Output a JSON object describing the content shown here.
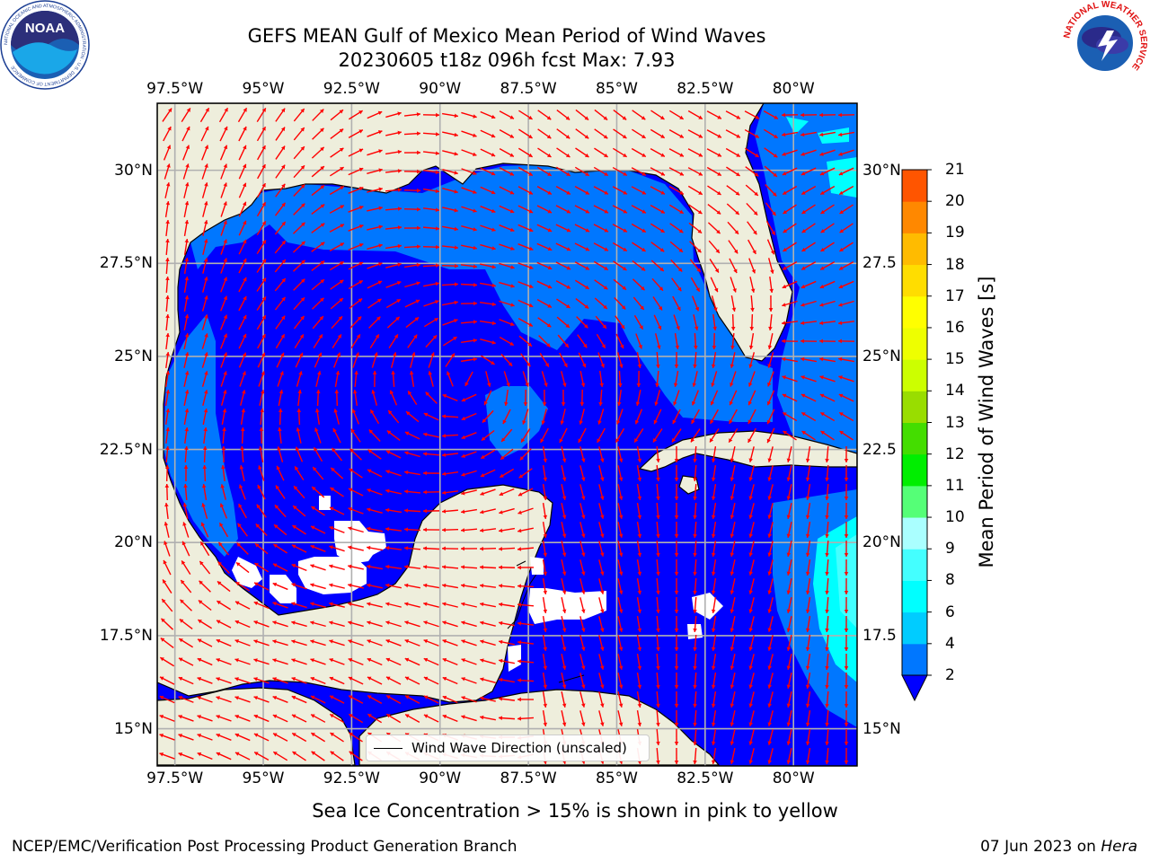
{
  "header": {
    "title_line1": "GEFS MEAN Gulf of Mexico Mean Period of Wind Waves",
    "title_line2": "20230605 t18z 096h fcst   Max: 7.93"
  },
  "logos": {
    "left": "NOAA",
    "left_ring_text": "NATIONAL OCEANIC AND ATMOSPHERIC ADMINISTRATION · U.S. DEPARTMENT OF COMMERCE",
    "right_ring_text": "NATIONAL WEATHER SERVICE"
  },
  "map": {
    "lon_labels": [
      "97.5°W",
      "95°W",
      "92.5°W",
      "90°W",
      "87.5°W",
      "85°W",
      "82.5°W",
      "80°W"
    ],
    "lat_labels_left": [
      "30°N",
      "27.5°N",
      "25°N",
      "22.5°N",
      "20°N",
      "17.5°N",
      "15°N"
    ],
    "lat_labels_right": [
      "30°N",
      "27.5",
      "25°N",
      "22.5",
      "20°N",
      "17.5",
      "15°N"
    ],
    "lon_range": [
      -98,
      -78.2
    ],
    "lat_range": [
      14,
      31.8
    ],
    "gridlines": true,
    "legend": {
      "label": "Wind Wave Direction (unscaled)"
    },
    "colors": {
      "land": "#eeeedc",
      "ocean_low": "#0000ff",
      "ocean_mid": "#0077ff",
      "arrows": "#ff0000"
    }
  },
  "colorbar": {
    "label": "Mean Period of Wind Waves [s]",
    "tick_labels": [
      "2",
      "4",
      "6",
      "8",
      "9",
      "10",
      "11",
      "12",
      "13",
      "14",
      "15",
      "16",
      "17",
      "18",
      "19",
      "20",
      "21"
    ],
    "colors": [
      "#0077ff",
      "#00ccff",
      "#00ffff",
      "#44ffff",
      "#aaffff",
      "#55ff77",
      "#00ee00",
      "#44dd00",
      "#99dd00",
      "#ccff00",
      "#eeff00",
      "#ffff00",
      "#ffdd00",
      "#ffbb00",
      "#ff8800",
      "#ff5500",
      "#ff2200",
      "#ff0000"
    ],
    "extend_color": "#0000ff"
  },
  "footer": {
    "caption": "Sea Ice Concentration > 15% is shown in pink to yellow",
    "producer": "NCEP/EMC/Verification Post Processing Product Generation Branch",
    "date": "07 Jun 2023 on",
    "host": "Hera"
  }
}
